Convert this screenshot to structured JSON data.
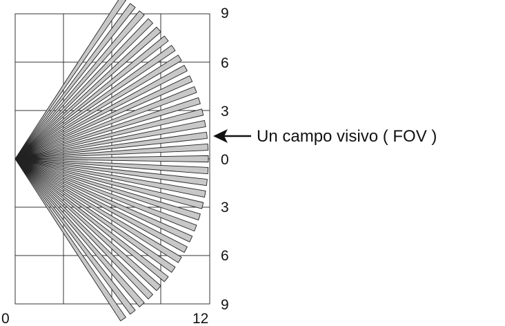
{
  "diagram": {
    "y_labels": [
      "9",
      "6",
      "3",
      "0",
      "3",
      "6",
      "9"
    ],
    "x_labels": [
      "0",
      "12"
    ],
    "annotation": "Un campo visivo ( FOV )",
    "beam_count": 33,
    "colors": {
      "grid": "#333333",
      "beam_fill": "#c8c8c8",
      "beam_stroke": "#222222",
      "text": "#111111"
    }
  }
}
